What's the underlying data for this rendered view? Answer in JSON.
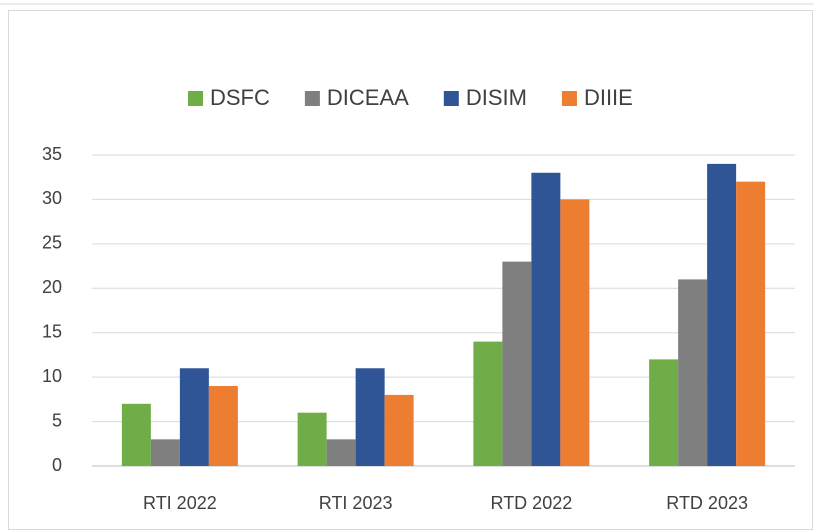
{
  "chart_data": {
    "type": "bar",
    "categories": [
      "RTI 2022",
      "RTI 2023",
      "RTD 2022",
      "RTD 2023"
    ],
    "series": [
      {
        "name": "DSFC",
        "color": "#70ad47",
        "values": [
          7,
          6,
          14,
          12
        ]
      },
      {
        "name": "DICEAA",
        "color": "#7f7f7f",
        "values": [
          3,
          3,
          23,
          21
        ]
      },
      {
        "name": "DISIM",
        "color": "#2f5597",
        "values": [
          11,
          11,
          33,
          34
        ]
      },
      {
        "name": "DIIIE",
        "color": "#ed7d31",
        "values": [
          9,
          8,
          30,
          32
        ]
      }
    ],
    "ylim": [
      0,
      35
    ],
    "yticks": [
      0,
      5,
      10,
      15,
      20,
      25,
      30,
      35
    ],
    "grid": true,
    "legend": "top"
  }
}
